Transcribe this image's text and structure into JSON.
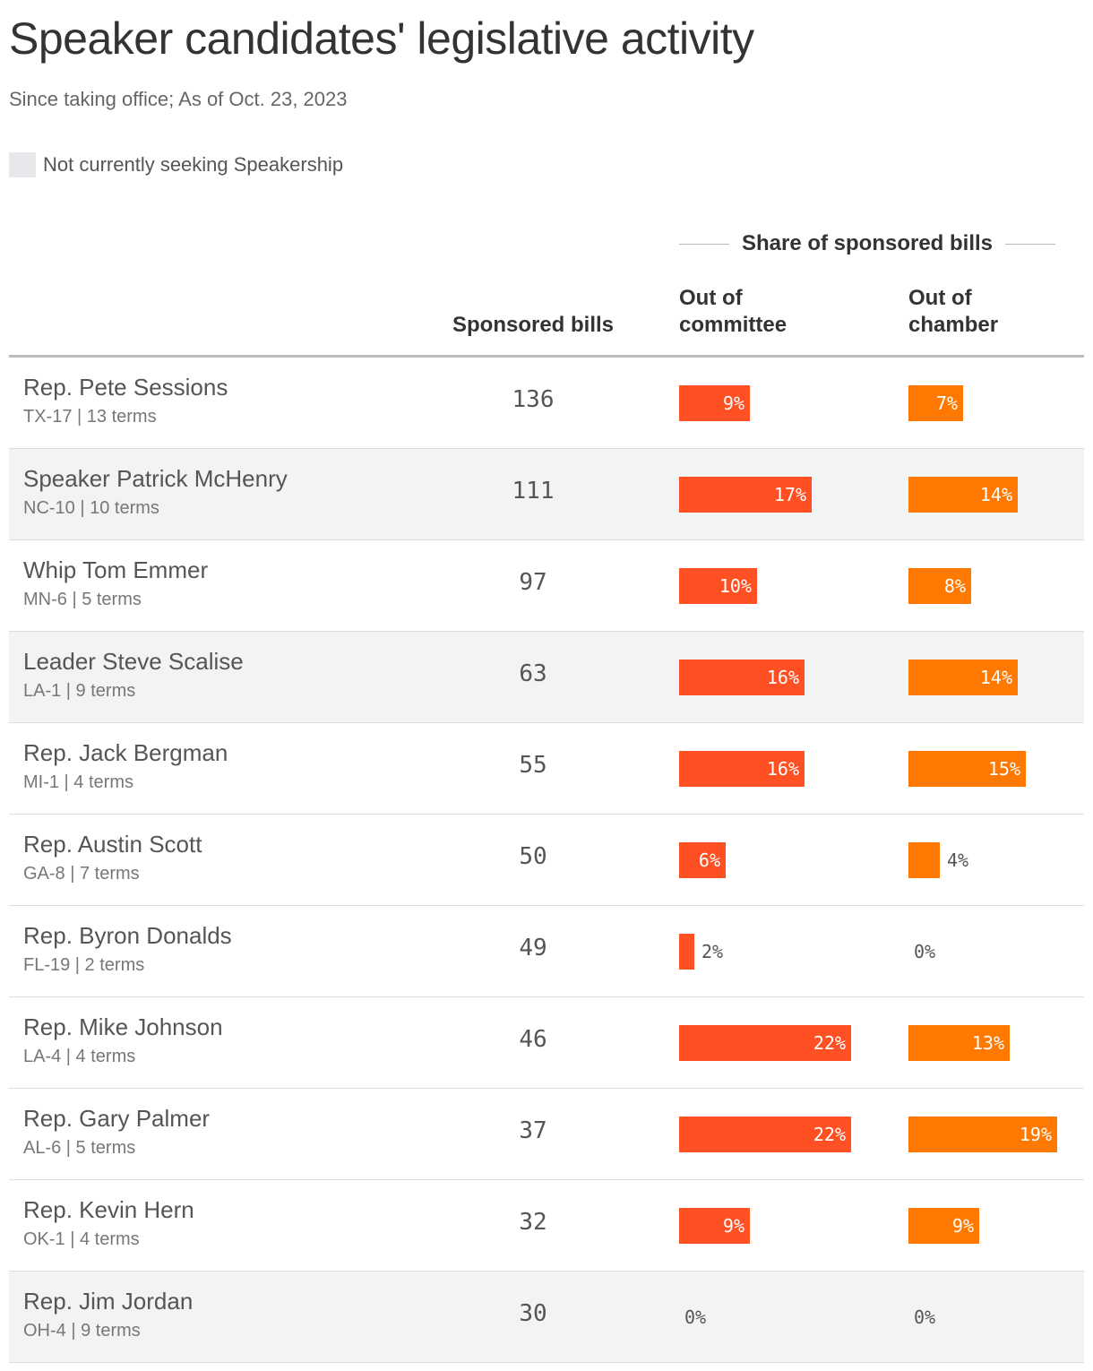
{
  "title": "Speaker candidates' legislative activity",
  "subtitle": "Since taking office; As of Oct. 23, 2023",
  "legend": {
    "label": "Not currently seeking Speakership",
    "color": "#e5e7ea"
  },
  "group_header": "Share of sponsored bills",
  "columns": {
    "sponsored": "Sponsored bills",
    "committee_line1": "Out of",
    "committee_line2": "committee",
    "chamber_line1": "Out of",
    "chamber_line2": "chamber"
  },
  "colors": {
    "committee": "#ff5024",
    "chamber": "#ff7900",
    "shaded_row": "#f2f3f3"
  },
  "chart_data": {
    "type": "table",
    "x_max_percent": 22,
    "rows": [
      {
        "name": "Rep. Pete Sessions",
        "meta": "TX-17 | 13 terms",
        "sponsored": 136,
        "committee": 9,
        "committee_label": "9%",
        "chamber": 7,
        "chamber_label": "7%",
        "not_seeking": false
      },
      {
        "name": "Speaker Patrick McHenry",
        "meta": "NC-10 | 10 terms",
        "sponsored": 111,
        "committee": 17,
        "committee_label": "17%",
        "chamber": 14,
        "chamber_label": "14%",
        "not_seeking": true
      },
      {
        "name": "Whip Tom Emmer",
        "meta": "MN-6 | 5 terms",
        "sponsored": 97,
        "committee": 10,
        "committee_label": "10%",
        "chamber": 8,
        "chamber_label": "8%",
        "not_seeking": false
      },
      {
        "name": "Leader Steve Scalise",
        "meta": "LA-1 | 9 terms",
        "sponsored": 63,
        "committee": 16,
        "committee_label": "16%",
        "chamber": 14,
        "chamber_label": "14%",
        "not_seeking": true
      },
      {
        "name": "Rep. Jack Bergman",
        "meta": "MI-1 | 4 terms",
        "sponsored": 55,
        "committee": 16,
        "committee_label": "16%",
        "chamber": 15,
        "chamber_label": "15%",
        "not_seeking": false
      },
      {
        "name": "Rep. Austin Scott",
        "meta": "GA-8 | 7 terms",
        "sponsored": 50,
        "committee": 6,
        "committee_label": "6%",
        "chamber": 4,
        "chamber_label": "4%",
        "not_seeking": false
      },
      {
        "name": "Rep. Byron Donalds",
        "meta": "FL-19 | 2 terms",
        "sponsored": 49,
        "committee": 2,
        "committee_label": "2%",
        "chamber": 0,
        "chamber_label": "0%",
        "not_seeking": false
      },
      {
        "name": "Rep. Mike Johnson",
        "meta": "LA-4 | 4 terms",
        "sponsored": 46,
        "committee": 22,
        "committee_label": "22%",
        "chamber": 13,
        "chamber_label": "13%",
        "not_seeking": false
      },
      {
        "name": "Rep. Gary Palmer",
        "meta": "AL-6 | 5 terms",
        "sponsored": 37,
        "committee": 22,
        "committee_label": "22%",
        "chamber": 19,
        "chamber_label": "19%",
        "not_seeking": false
      },
      {
        "name": "Rep. Kevin Hern",
        "meta": "OK-1 | 4 terms",
        "sponsored": 32,
        "committee": 9,
        "committee_label": "9%",
        "chamber": 9,
        "chamber_label": "9%",
        "not_seeking": false
      },
      {
        "name": "Rep. Jim Jordan",
        "meta": "OH-4 | 9 terms",
        "sponsored": 30,
        "committee": 0,
        "committee_label": "0%",
        "chamber": 0,
        "chamber_label": "0%",
        "not_seeking": true
      }
    ]
  }
}
